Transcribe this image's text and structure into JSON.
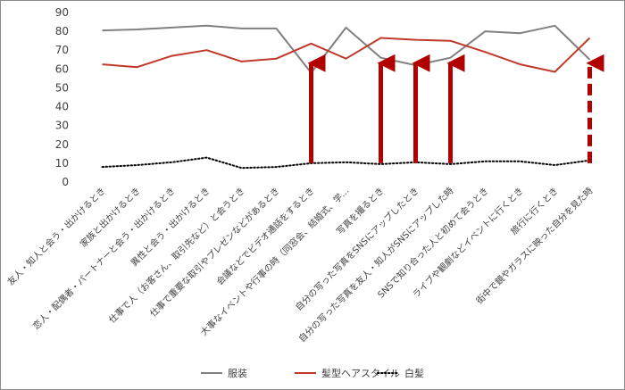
{
  "chart_data": {
    "type": "line",
    "title": "",
    "xlabel": "",
    "ylabel": "",
    "ylim": [
      0,
      90
    ],
    "yticks": [
      0,
      10,
      20,
      30,
      40,
      50,
      60,
      70,
      80,
      90
    ],
    "grid": false,
    "legend_position": "bottom",
    "categories": [
      "友人・知人と会う・出かけるとき",
      "家族と出かけるとき",
      "恋人・配偶者・パートナーと会う・出かけるとき",
      "異性と会う・出かけるとき",
      "仕事で人（お客さん、取引先など）と会うとき",
      "仕事で重要な取引やプレゼンなどがあるとき",
      "会議などでビデオ通話をするとき",
      "大事なイベントや行事の時（同窓会、結婚式、学…",
      "写真を撮るとき",
      "自分の写った写真をSNSにアップしたとき",
      "自分の写った写真を友人・知人がSNSにアップした時",
      "SNSで知り合った人と初めて会うとき",
      "ライブや観劇などイベントに行くとき",
      "旅行に行くとき",
      "街中で鏡やガラスに映った自分を見た時"
    ],
    "series": [
      {
        "name": "服装",
        "color": "#808080",
        "style": "solid",
        "values": [
          80.5,
          81,
          82,
          83,
          81.5,
          81.5,
          58,
          82,
          66,
          62,
          66,
          80,
          79,
          83,
          65
        ]
      },
      {
        "name": "髪型ヘアスタイル",
        "color": "#c0392b",
        "style": "solid",
        "values": [
          62.5,
          61,
          67,
          70,
          64,
          65.5,
          73.5,
          65.5,
          76.5,
          75.5,
          75,
          69,
          62.5,
          58.5,
          76.5
        ]
      },
      {
        "name": "白髪",
        "color": "#000000",
        "style": "dotted",
        "values": [
          8,
          9,
          10.5,
          13,
          7.5,
          8,
          10,
          10.5,
          9.5,
          10.5,
          9.5,
          11,
          11,
          9,
          11.5
        ]
      }
    ],
    "annotations": [
      {
        "type": "arrow",
        "category_index": 6,
        "from": 10,
        "to": 65,
        "style": "solid",
        "color": "#b00000"
      },
      {
        "type": "arrow",
        "category_index": 8,
        "from": 10,
        "to": 65,
        "style": "solid",
        "color": "#b00000"
      },
      {
        "type": "arrow",
        "category_index": 9,
        "from": 10,
        "to": 65,
        "style": "solid",
        "color": "#b00000"
      },
      {
        "type": "arrow",
        "category_index": 10,
        "from": 10,
        "to": 65,
        "style": "solid",
        "color": "#b00000"
      },
      {
        "type": "arrow",
        "category_index": 14,
        "from": 10,
        "to": 65,
        "style": "dashed",
        "color": "#b00000"
      }
    ]
  }
}
